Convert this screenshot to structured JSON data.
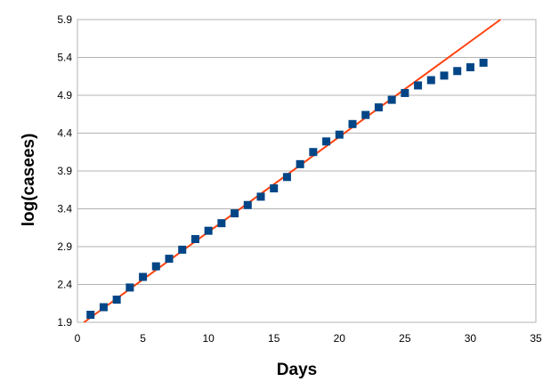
{
  "chart_data": {
    "type": "scatter",
    "title": "",
    "xlabel": "Days",
    "ylabel": "log(casees)",
    "xlim": [
      0,
      35
    ],
    "ylim": [
      1.9,
      5.9
    ],
    "x_ticks": [
      "0",
      "5",
      "10",
      "15",
      "20",
      "25",
      "30",
      "35"
    ],
    "y_ticks": [
      "1.9",
      "2.4",
      "2.9",
      "3.4",
      "3.9",
      "4.4",
      "4.9",
      "5.4",
      "5.9"
    ],
    "x_tick_values": [
      0,
      5,
      10,
      15,
      20,
      25,
      30,
      35
    ],
    "y_tick_values": [
      1.9,
      2.4,
      2.9,
      3.4,
      3.9,
      4.4,
      4.9,
      5.4,
      5.9
    ],
    "grid": "horizontal",
    "legend": "none",
    "series": [
      {
        "marker": "square",
        "color": "#004586",
        "x": [
          1,
          2,
          3,
          4,
          5,
          6,
          7,
          8,
          9,
          10,
          11,
          12,
          13,
          14,
          15,
          16,
          17,
          18,
          19,
          20,
          21,
          22,
          23,
          24,
          25,
          26,
          27,
          28,
          29,
          30,
          31
        ],
        "y": [
          2.0,
          2.1,
          2.2,
          2.36,
          2.5,
          2.64,
          2.74,
          2.86,
          3.0,
          3.11,
          3.21,
          3.34,
          3.45,
          3.56,
          3.67,
          3.82,
          3.99,
          4.15,
          4.29,
          4.38,
          4.52,
          4.64,
          4.74,
          4.84,
          4.93,
          5.03,
          5.1,
          5.16,
          5.22,
          5.27,
          5.33
        ]
      }
    ],
    "trendline": {
      "color": "#ff420e",
      "x": [
        0.5,
        32.3
      ],
      "y": [
        1.9,
        5.9
      ]
    }
  }
}
